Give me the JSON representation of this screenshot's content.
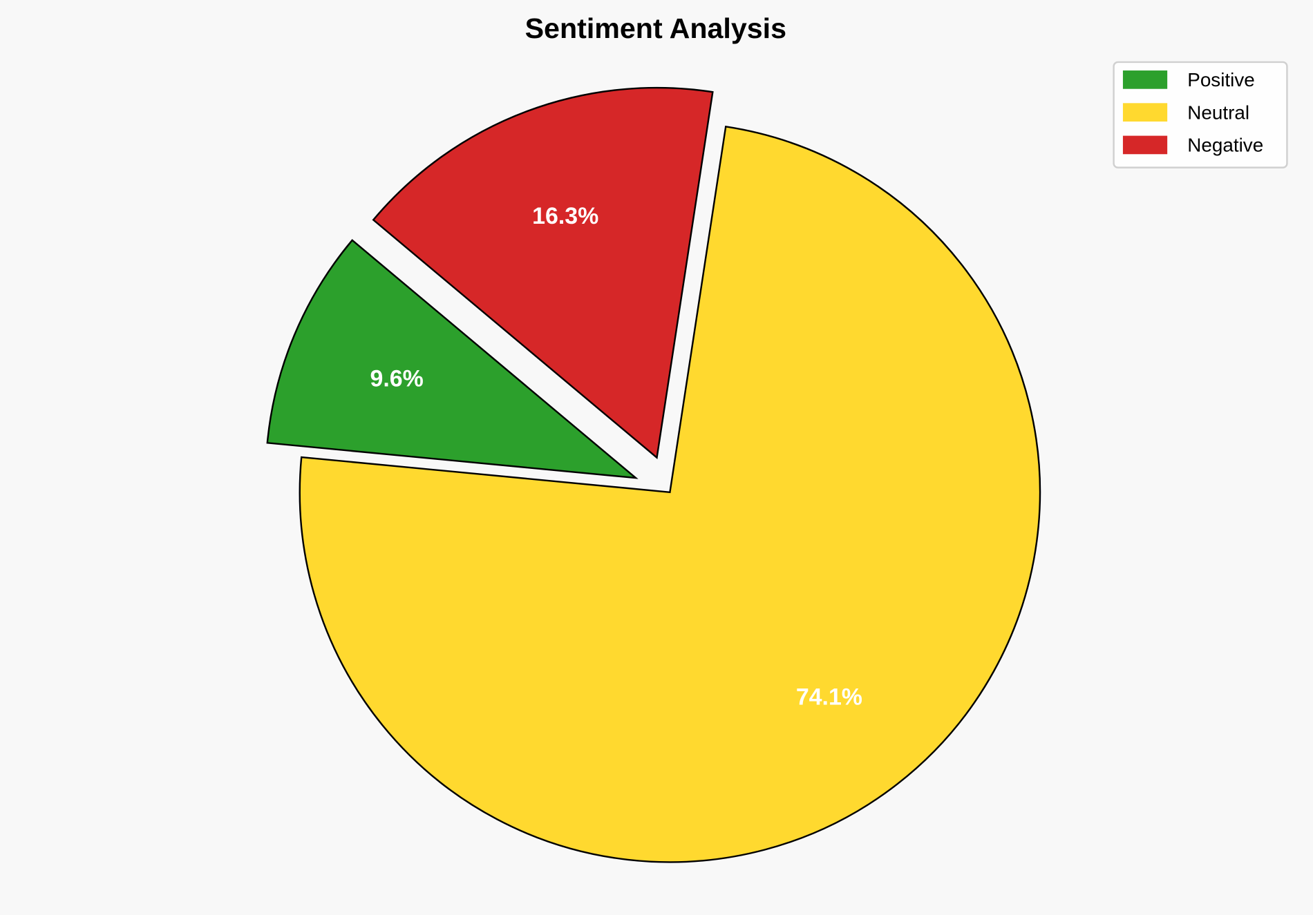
{
  "chart_data": {
    "type": "pie",
    "title": "Sentiment Analysis",
    "labels": [
      "Positive",
      "Neutral",
      "Negative"
    ],
    "values": [
      9.6,
      74.1,
      16.3
    ],
    "value_labels": [
      "9.6%",
      "74.1%",
      "16.3%"
    ],
    "colors": [
      "#2ca02c",
      "#ffd92f",
      "#d62728"
    ],
    "explode": [
      0.1,
      0,
      0.1
    ],
    "start_angle": 140,
    "direction": "counterclockwise",
    "edge_color": "#000000",
    "label_color": "#ffffff",
    "background": "#f8f8f8",
    "legend": {
      "placement": "top-right",
      "entries": [
        "Positive",
        "Neutral",
        "Negative"
      ]
    }
  }
}
